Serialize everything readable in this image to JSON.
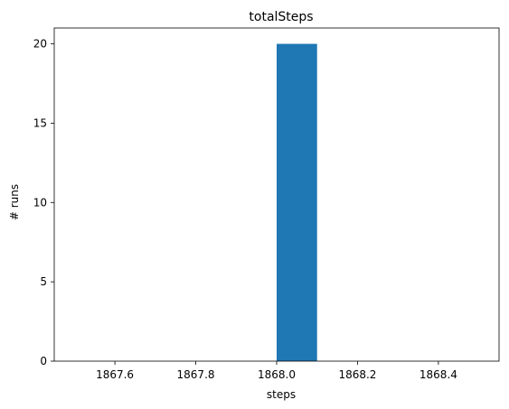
{
  "chart_data": {
    "type": "bar",
    "title": "totalSteps",
    "xlabel": "steps",
    "ylabel": "# runs",
    "xlim": [
      1867.45,
      1868.55
    ],
    "ylim": [
      0,
      21
    ],
    "xticks": [
      1867.6,
      1867.8,
      1868.0,
      1868.2,
      1868.4
    ],
    "xtick_labels": [
      "1867.6",
      "1867.8",
      "1868.0",
      "1868.2",
      "1868.4"
    ],
    "yticks": [
      0,
      5,
      10,
      15,
      20
    ],
    "ytick_labels": [
      "0",
      "5",
      "10",
      "15",
      "20"
    ],
    "bins": [
      {
        "x0": 1867.5,
        "x1": 1867.6,
        "value": 0
      },
      {
        "x0": 1867.6,
        "x1": 1867.7,
        "value": 0
      },
      {
        "x0": 1867.7,
        "x1": 1867.8,
        "value": 0
      },
      {
        "x0": 1867.8,
        "x1": 1867.9,
        "value": 0
      },
      {
        "x0": 1867.9,
        "x1": 1868.0,
        "value": 0
      },
      {
        "x0": 1868.0,
        "x1": 1868.1,
        "value": 20
      },
      {
        "x0": 1868.1,
        "x1": 1868.2,
        "value": 0
      },
      {
        "x0": 1868.2,
        "x1": 1868.3,
        "value": 0
      },
      {
        "x0": 1868.3,
        "x1": 1868.4,
        "value": 0
      },
      {
        "x0": 1868.4,
        "x1": 1868.5,
        "value": 0
      }
    ],
    "bar_color": "#1f77b4",
    "grid": false
  }
}
